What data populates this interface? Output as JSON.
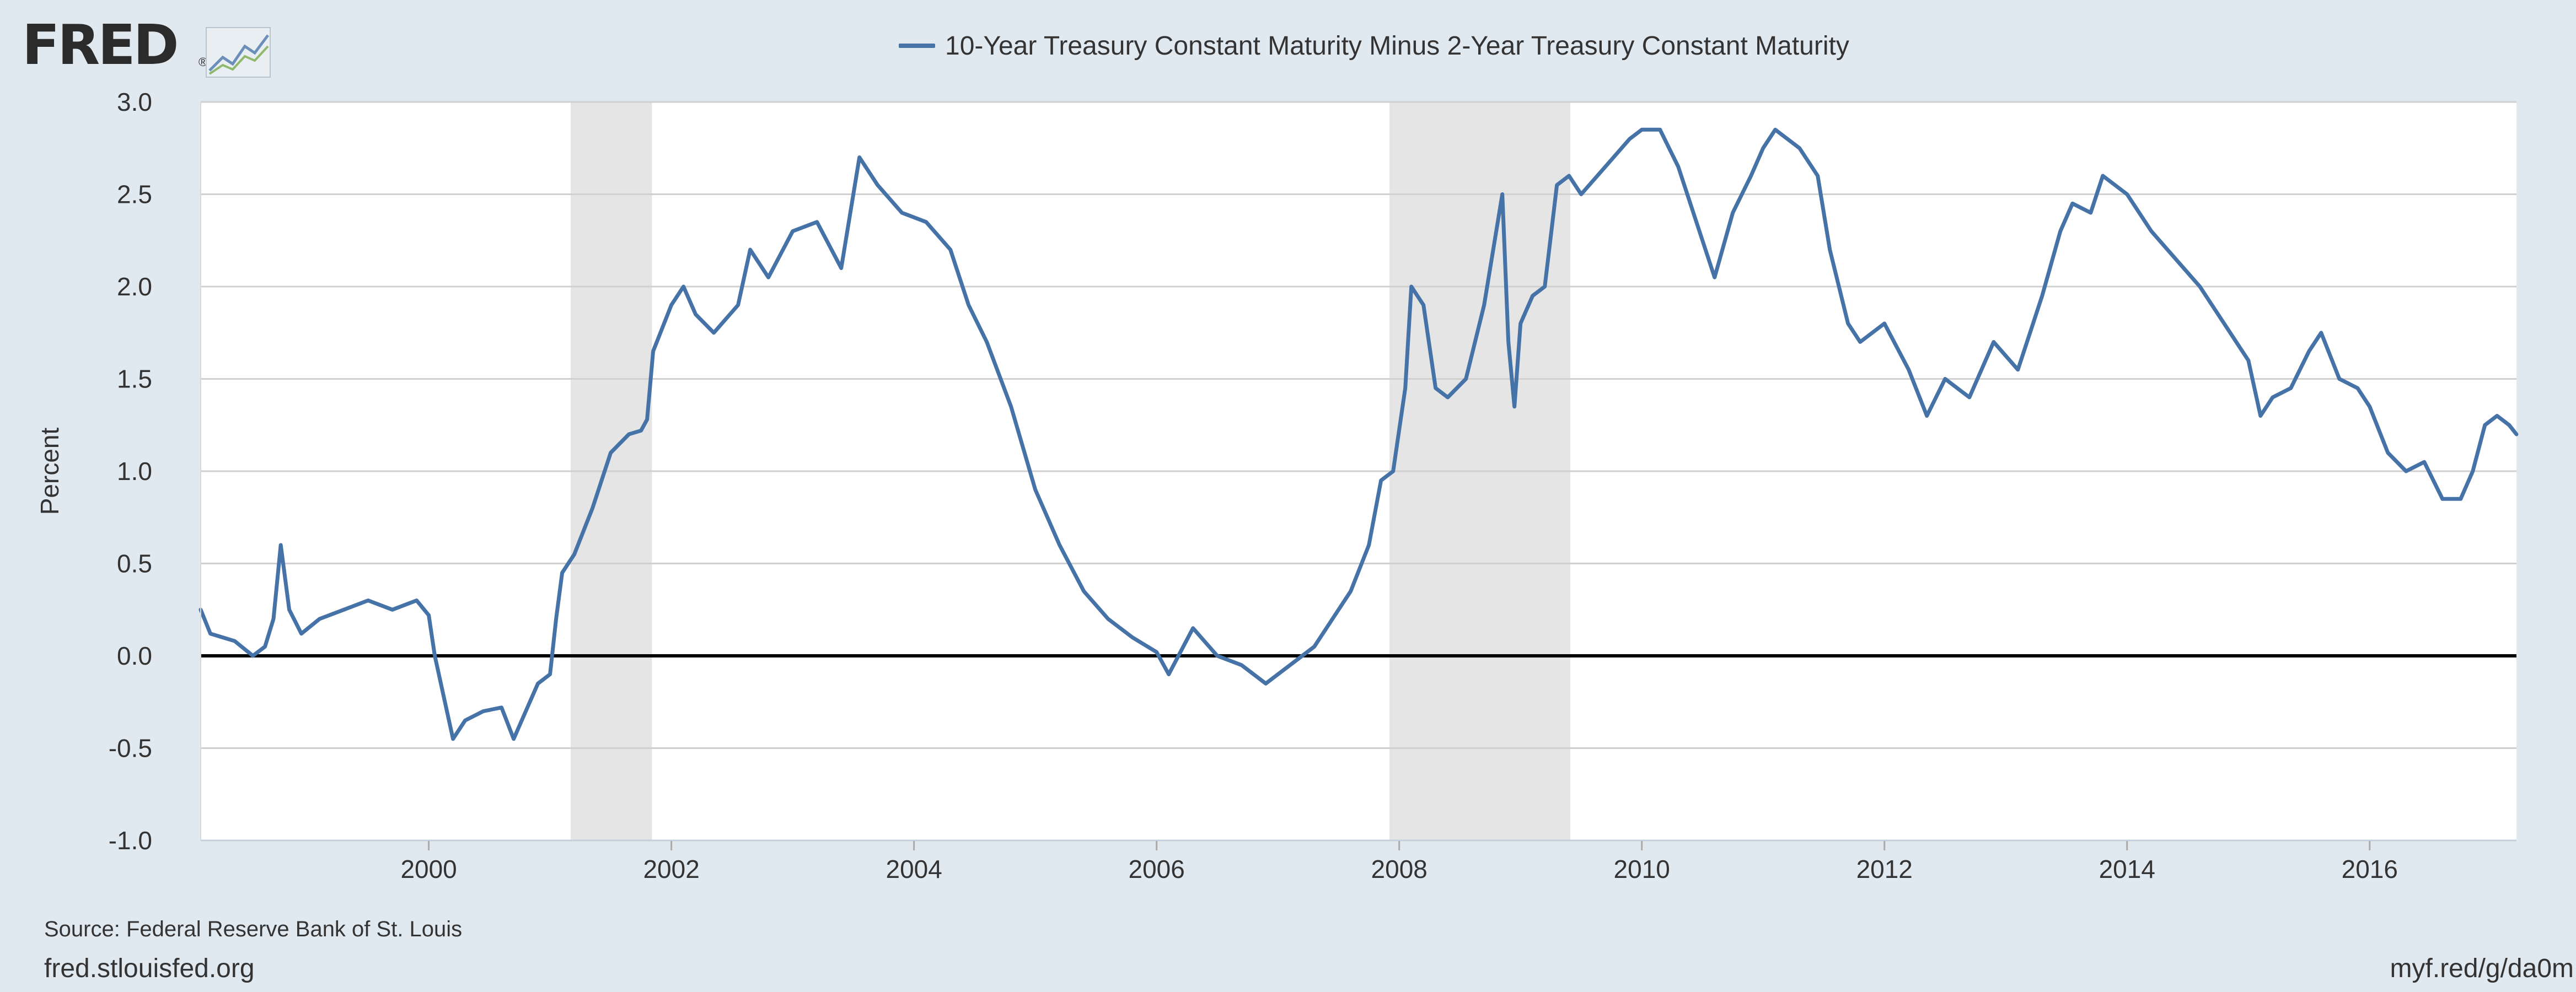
{
  "branding": {
    "logo_text": "FRED",
    "logo_mark": "®",
    "logo_icon": "line-chart-icon"
  },
  "colors": {
    "background": "#e1e9f0",
    "plot_background": "#ffffff",
    "series": "#4572a7",
    "recession_band": "#e5e5e5",
    "grid": "#d0d0d0",
    "zero_line": "#000000",
    "text": "#333333"
  },
  "footer": {
    "source": "Source: Federal Reserve Bank of St. Louis",
    "site": "fred.stlouisfed.org",
    "short_url": "myf.red/g/da0m"
  },
  "chart_data": {
    "type": "line",
    "title": "",
    "xlabel": "",
    "ylabel": "Percent",
    "ylim": [
      -1.0,
      3.0
    ],
    "xlim": [
      1998.12,
      2017.21
    ],
    "y_ticks": [
      3.0,
      2.5,
      2.0,
      1.5,
      1.0,
      0.5,
      0.0,
      -0.5,
      -1.0
    ],
    "y_tick_labels": [
      "3.0",
      "2.5",
      "2.0",
      "1.5",
      "1.0",
      "0.5",
      "0.0",
      "-0.5",
      "-1.0"
    ],
    "x_ticks": [
      2000,
      2002,
      2004,
      2006,
      2008,
      2010,
      2012,
      2014,
      2016
    ],
    "x_tick_labels": [
      "2000",
      "2002",
      "2004",
      "2006",
      "2008",
      "2010",
      "2012",
      "2014",
      "2016"
    ],
    "grid": true,
    "legend_position": "top-center",
    "reference_line": 0.0,
    "recessions": [
      {
        "start": 2001.17,
        "end": 2001.84
      },
      {
        "start": 2007.92,
        "end": 2009.41
      }
    ],
    "series": [
      {
        "name": "10-Year Treasury Constant Maturity Minus 2-Year Treasury Constant Maturity",
        "x": [
          1998.12,
          1998.2,
          1998.3,
          1998.4,
          1998.55,
          1998.65,
          1998.72,
          1998.78,
          1998.85,
          1998.95,
          1999.1,
          1999.3,
          1999.5,
          1999.7,
          1999.9,
          2000.0,
          2000.05,
          2000.1,
          2000.15,
          2000.2,
          2000.3,
          2000.45,
          2000.6,
          2000.7,
          2000.8,
          2000.9,
          2001.0,
          2001.05,
          2001.1,
          2001.2,
          2001.35,
          2001.5,
          2001.65,
          2001.75,
          2001.8,
          2001.85,
          2002.0,
          2002.1,
          2002.2,
          2002.35,
          2002.55,
          2002.65,
          2002.8,
          2003.0,
          2003.2,
          2003.4,
          2003.55,
          2003.7,
          2003.9,
          2004.1,
          2004.3,
          2004.45,
          2004.6,
          2004.8,
          2005.0,
          2005.2,
          2005.4,
          2005.6,
          2005.8,
          2006.0,
          2006.1,
          2006.3,
          2006.5,
          2006.7,
          2006.9,
          2007.1,
          2007.3,
          2007.45,
          2007.6,
          2007.75,
          2007.85,
          2007.95,
          2008.05,
          2008.1,
          2008.2,
          2008.3,
          2008.4,
          2008.55,
          2008.7,
          2008.85,
          2008.9,
          2008.95,
          2009.0,
          2009.1,
          2009.2,
          2009.3,
          2009.4,
          2009.5,
          2009.7,
          2009.9,
          2010.0,
          2010.15,
          2010.3,
          2010.45,
          2010.6,
          2010.75,
          2010.9,
          2011.0,
          2011.1,
          2011.3,
          2011.45,
          2011.55,
          2011.7,
          2011.8,
          2012.0,
          2012.2,
          2012.35,
          2012.5,
          2012.7,
          2012.9,
          2013.1,
          2013.3,
          2013.45,
          2013.55,
          2013.7,
          2013.8,
          2014.0,
          2014.2,
          2014.4,
          2014.6,
          2014.8,
          2015.0,
          2015.1,
          2015.2,
          2015.35,
          2015.5,
          2015.6,
          2015.75,
          2015.9,
          2016.0,
          2016.15,
          2016.3,
          2016.45,
          2016.6,
          2016.75,
          2016.85,
          2016.95,
          2017.05,
          2017.15,
          2017.21
        ],
        "values": [
          0.25,
          0.12,
          0.1,
          0.08,
          0.0,
          0.05,
          0.2,
          0.6,
          0.25,
          0.12,
          0.2,
          0.25,
          0.3,
          0.25,
          0.3,
          0.22,
          0.0,
          -0.15,
          -0.3,
          -0.45,
          -0.35,
          -0.3,
          -0.28,
          -0.45,
          -0.3,
          -0.15,
          -0.1,
          0.2,
          0.45,
          0.55,
          0.8,
          1.1,
          1.2,
          1.22,
          1.28,
          1.65,
          1.9,
          2.0,
          1.85,
          1.75,
          1.9,
          2.2,
          2.05,
          2.3,
          2.35,
          2.1,
          2.7,
          2.55,
          2.4,
          2.35,
          2.2,
          1.9,
          1.7,
          1.35,
          0.9,
          0.6,
          0.35,
          0.2,
          0.1,
          0.02,
          -0.1,
          0.15,
          0.0,
          -0.05,
          -0.15,
          -0.05,
          0.05,
          0.2,
          0.35,
          0.6,
          0.95,
          1.0,
          1.45,
          2.0,
          1.9,
          1.45,
          1.4,
          1.5,
          1.9,
          2.5,
          1.7,
          1.35,
          1.8,
          1.95,
          2.0,
          2.55,
          2.6,
          2.5,
          2.65,
          2.8,
          2.85,
          2.85,
          2.65,
          2.35,
          2.05,
          2.4,
          2.6,
          2.75,
          2.85,
          2.75,
          2.6,
          2.2,
          1.8,
          1.7,
          1.8,
          1.55,
          1.3,
          1.5,
          1.4,
          1.7,
          1.55,
          1.95,
          2.3,
          2.45,
          2.4,
          2.6,
          2.5,
          2.3,
          2.15,
          2.0,
          1.8,
          1.6,
          1.3,
          1.4,
          1.45,
          1.65,
          1.75,
          1.5,
          1.45,
          1.35,
          1.1,
          1.0,
          1.05,
          0.85,
          0.85,
          1.0,
          1.25,
          1.3,
          1.25,
          1.2
        ]
      }
    ]
  }
}
